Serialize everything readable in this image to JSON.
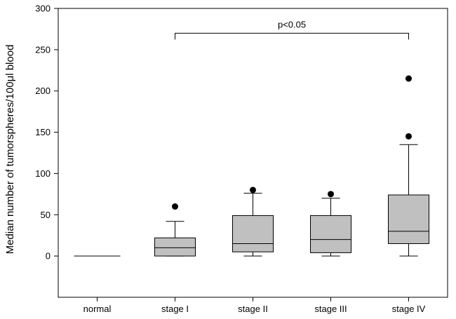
{
  "chart_data": {
    "type": "box",
    "title": "",
    "xlabel": "",
    "ylabel": "Median number of tumorspheres/100μl blood",
    "ylim": [
      -50,
      300
    ],
    "yticks": [
      0,
      50,
      100,
      150,
      200,
      250,
      300
    ],
    "grid": false,
    "box_color": "#c0c0c0",
    "categories": [
      "normal",
      "stage I",
      "stage II",
      "stage III",
      "stage IV"
    ],
    "boxes": [
      {
        "q1": 0,
        "median": 0,
        "q3": 0,
        "whisker_low": 0,
        "whisker_high": 0,
        "outliers": []
      },
      {
        "q1": 0,
        "median": 10,
        "q3": 22,
        "whisker_low": 0,
        "whisker_high": 42,
        "outliers": [
          60
        ]
      },
      {
        "q1": 5,
        "median": 15,
        "q3": 49,
        "whisker_low": 0,
        "whisker_high": 76,
        "outliers": [
          80
        ]
      },
      {
        "q1": 4,
        "median": 20,
        "q3": 49,
        "whisker_low": 0,
        "whisker_high": 70,
        "outliers": [
          75
        ]
      },
      {
        "q1": 15,
        "median": 30,
        "q3": 74,
        "whisker_low": 0,
        "whisker_high": 135,
        "outliers": [
          145,
          215
        ]
      }
    ],
    "annotations": [
      {
        "text": "p<0.05",
        "from_category": 1,
        "to_category": 4,
        "y": 270
      }
    ]
  }
}
